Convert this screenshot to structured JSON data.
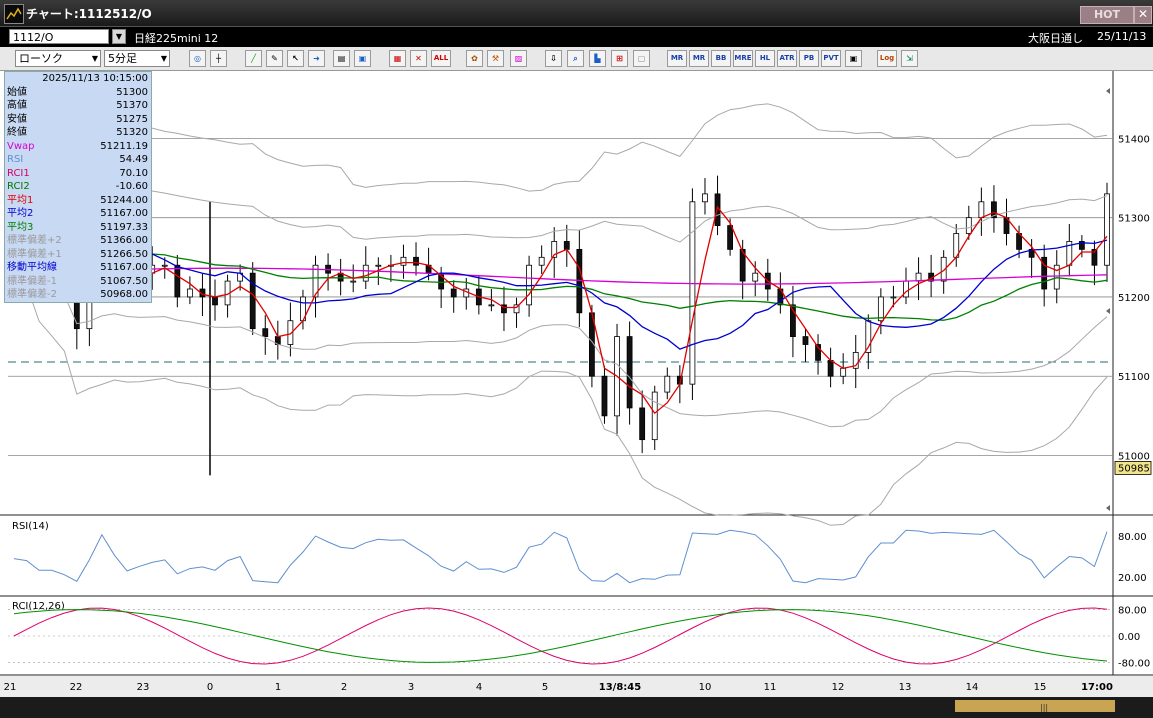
{
  "window": {
    "title": "チャート:1112512/O",
    "hot_label": "HOT",
    "close_label": "✕"
  },
  "symbol_bar": {
    "code": "1112/O",
    "name": "日経225mini 12",
    "market": "大阪日通し",
    "date": "25/11/13"
  },
  "toolbar": {
    "chart_type": "ローソク",
    "interval": "5分足",
    "buttons": [
      "zoom",
      "crosshair",
      "trendline",
      "paint",
      "cursor",
      "arrow",
      "note",
      "trash",
      "grid",
      "delete",
      "ALL",
      "tools",
      "wrench",
      "palette",
      "order",
      "search",
      "chart",
      "ruler",
      "ghost",
      "MR",
      "BB",
      "MRE",
      "HL",
      "ATR",
      "PB",
      "PVT",
      "box",
      "Log",
      "export"
    ]
  },
  "info_panel": {
    "datetime": "2025/11/13  10:15:00",
    "rows": [
      {
        "k": "始値",
        "v": "51300",
        "color": "#000000"
      },
      {
        "k": "高値",
        "v": "51370",
        "color": "#000000"
      },
      {
        "k": "安値",
        "v": "51275",
        "color": "#000000"
      },
      {
        "k": "終値",
        "v": "51320",
        "color": "#000000"
      },
      {
        "k": "Vwap",
        "v": "51211.19",
        "color": "#d400d4"
      },
      {
        "k": "RSI",
        "v": "54.49",
        "color": "#5f8fd0"
      },
      {
        "k": "RCI1",
        "v": "70.10",
        "color": "#d4006a"
      },
      {
        "k": "RCI2",
        "v": "-10.60",
        "color": "#007a00"
      },
      {
        "k": "平均1",
        "v": "51244.00",
        "color": "#e00000"
      },
      {
        "k": "平均2",
        "v": "51167.00",
        "color": "#0000d0"
      },
      {
        "k": "平均3",
        "v": "51197.33",
        "color": "#008000"
      },
      {
        "k": "標準偏差+2",
        "v": "51366.00",
        "color": "#9a9a9a"
      },
      {
        "k": "標準偏差+1",
        "v": "51266.50",
        "color": "#9a9a9a"
      },
      {
        "k": "移動平均線",
        "v": "51167.00",
        "color": "#0000d0"
      },
      {
        "k": "標準偏差-1",
        "v": "51067.50",
        "color": "#9a9a9a"
      },
      {
        "k": "標準偏差-2",
        "v": "50968.00",
        "color": "#9a9a9a"
      }
    ]
  },
  "price_axis": {
    "ticks": [
      "51400",
      "51300",
      "51200",
      "51100",
      "51000"
    ],
    "current": "50985",
    "range": [
      50930,
      51485
    ]
  },
  "rsi_panel": {
    "label": "RSI(14)",
    "ticks": [
      "80.00",
      "20.00"
    ]
  },
  "rci_panel": {
    "label": "RCI(12,26)",
    "ticks": [
      "80.00",
      "0.00",
      "-80.00"
    ]
  },
  "time_axis": {
    "labels": [
      "21",
      "22",
      "23",
      "0",
      "1",
      "2",
      "3",
      "4",
      "5",
      "13/8:45",
      "10",
      "11",
      "12",
      "13",
      "14",
      "15",
      "17:00"
    ]
  },
  "colors": {
    "bb": "#a8a8a8",
    "ma1": "#e00000",
    "ma2": "#0000d0",
    "ma3": "#008000",
    "vwap": "#d400d4",
    "rsi": "#5f8fd0",
    "rci1": "#e0006a",
    "rci2": "#009000"
  },
  "chart_data": {
    "type": "line",
    "price_series_close": [
      51330,
      51300,
      51260,
      51250,
      51230,
      51160,
      51250,
      51320,
      51260,
      51220,
      51230,
      51240,
      51240,
      51200,
      51210,
      51200,
      51190,
      51220,
      51230,
      51160,
      51150,
      51140,
      51170,
      51200,
      51240,
      51230,
      51220,
      51220,
      51240,
      51240,
      51240,
      51250,
      51240,
      51230,
      51210,
      51200,
      51210,
      51190,
      51190,
      51180,
      51190,
      51240,
      51250,
      51270,
      51260,
      51180,
      51100,
      51050,
      51150,
      51060,
      51020,
      51080,
      51100,
      51090,
      51320,
      51330,
      51290,
      51260,
      51220,
      51230,
      51210,
      51190,
      51150,
      51140,
      51120,
      51100,
      51110,
      51130,
      51170,
      51200,
      51200,
      51220,
      51230,
      51220,
      51250,
      51280,
      51300,
      51320,
      51300,
      51280,
      51260,
      51250,
      51210,
      51240,
      51270,
      51260,
      51240,
      51330
    ]
  }
}
